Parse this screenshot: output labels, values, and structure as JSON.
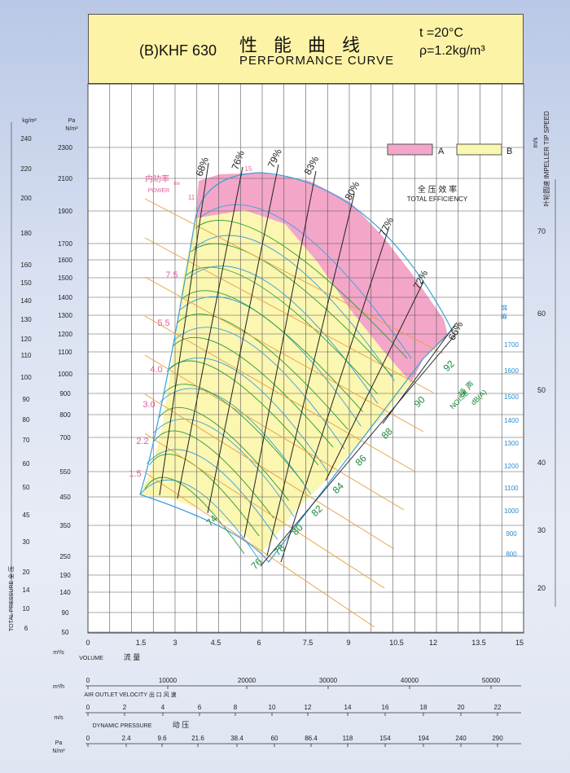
{
  "header": {
    "model": "(B)KHF 630",
    "title_cn": "性能曲线",
    "title_en": "PERFORMANCE  CURVE",
    "temperature": "t =20°C",
    "density": "ρ=1.2kg/m³"
  },
  "colors": {
    "region_a": "#f3a6c8",
    "region_b": "#fbf6b0",
    "efficiency_lines": "#222222",
    "speed_curves": "#3aa0d8",
    "pressure_curves": "#2a9a3a",
    "power_lines": "#e8a040",
    "noise_labels": "#1a8a3a",
    "pink_labels": "#e0609a"
  },
  "chart_data": {
    "type": "line",
    "x_axis": {
      "unit": "m³/s",
      "label_en": "VOLUME",
      "label_cn": "流 量",
      "ticks": [
        "0",
        "1.5",
        "3",
        "4.5",
        "6",
        "7.5",
        "9",
        "10.5",
        "12",
        "13.5",
        "15"
      ],
      "range": [
        0,
        15
      ]
    },
    "y_axis_pa": {
      "unit_top": "Pa",
      "unit_bottom": "N/m²",
      "ticks": [
        "50",
        "90",
        "140",
        "190",
        "250",
        "350",
        "450",
        "550",
        "700",
        "800",
        "900",
        "1000",
        "1100",
        "1200",
        "1300",
        "1400",
        "1500",
        "1600",
        "1700",
        "1900",
        "2100",
        "2300"
      ]
    },
    "y_axis_kg": {
      "unit": "kg/m²",
      "label_en": "TOTAL PRESSURE",
      "label_cn": "全 压",
      "ticks": [
        "6",
        "10",
        "14",
        "20",
        "30",
        "45",
        "50",
        "60",
        "70",
        "80",
        "90",
        "100",
        "110",
        "120",
        "130",
        "140",
        "150",
        "160",
        "180",
        "200",
        "220",
        "240"
      ]
    },
    "y_axis_right": {
      "unit": "m/s",
      "label_en": "IMPELLER TIP SPEED",
      "label_cn": "叶轮圆速",
      "ticks": [
        "20",
        "30",
        "40",
        "50",
        "60",
        "70"
      ]
    },
    "axis_m3h": {
      "unit": "m³/h",
      "ticks": [
        "0",
        "10000",
        "20000",
        "30000",
        "40000",
        "50000"
      ]
    },
    "axis_velocity": {
      "unit": "m/s",
      "label_en": "AIR OUTLET VELOCITY",
      "label_cn": "出 口 风 速",
      "ticks": [
        "0",
        "2",
        "4",
        "6",
        "8",
        "10",
        "12",
        "14",
        "16",
        "18",
        "20",
        "22"
      ]
    },
    "axis_dynamic": {
      "unit_top": "Pa",
      "unit_bottom": "N/m²",
      "label_en": "DYNAMIC PRESSURE",
      "label_cn": "动 压",
      "ticks": [
        "0",
        "2.4",
        "9.6",
        "21.6",
        "38.4",
        "60",
        "86.4",
        "118",
        "154",
        "194",
        "240",
        "290"
      ]
    },
    "efficiency_labels": [
      "68%",
      "76%",
      "79%",
      "83%",
      "80%",
      "77%",
      "72%",
      "66%"
    ],
    "power_labels": [
      "1.5",
      "2.2",
      "3.0",
      "4.0",
      "5.5",
      "7.5",
      "11",
      "15"
    ],
    "power_title_cn": "内功率",
    "power_unit": "kw",
    "power_title_en": "POWER",
    "noise_labels": [
      "74",
      "76",
      "78",
      "80",
      "82",
      "84",
      "86",
      "88",
      "90",
      "92"
    ],
    "noise_title_cn": "噪 声",
    "noise_unit": "dB(A)",
    "noise_title_en": "NOISE",
    "speed_labels": [
      "800",
      "900",
      "1000",
      "1100",
      "1200",
      "1300",
      "1400",
      "1500",
      "1600",
      "1700"
    ],
    "speed_title_cn": "转 速",
    "efficiency_title_cn": "全 压 效 率",
    "efficiency_title_en": "TOTAL EFFICIENCY",
    "legend": [
      {
        "key": "A",
        "color": "#f3a6c8"
      },
      {
        "key": "B",
        "color": "#fbf6b0"
      }
    ]
  }
}
